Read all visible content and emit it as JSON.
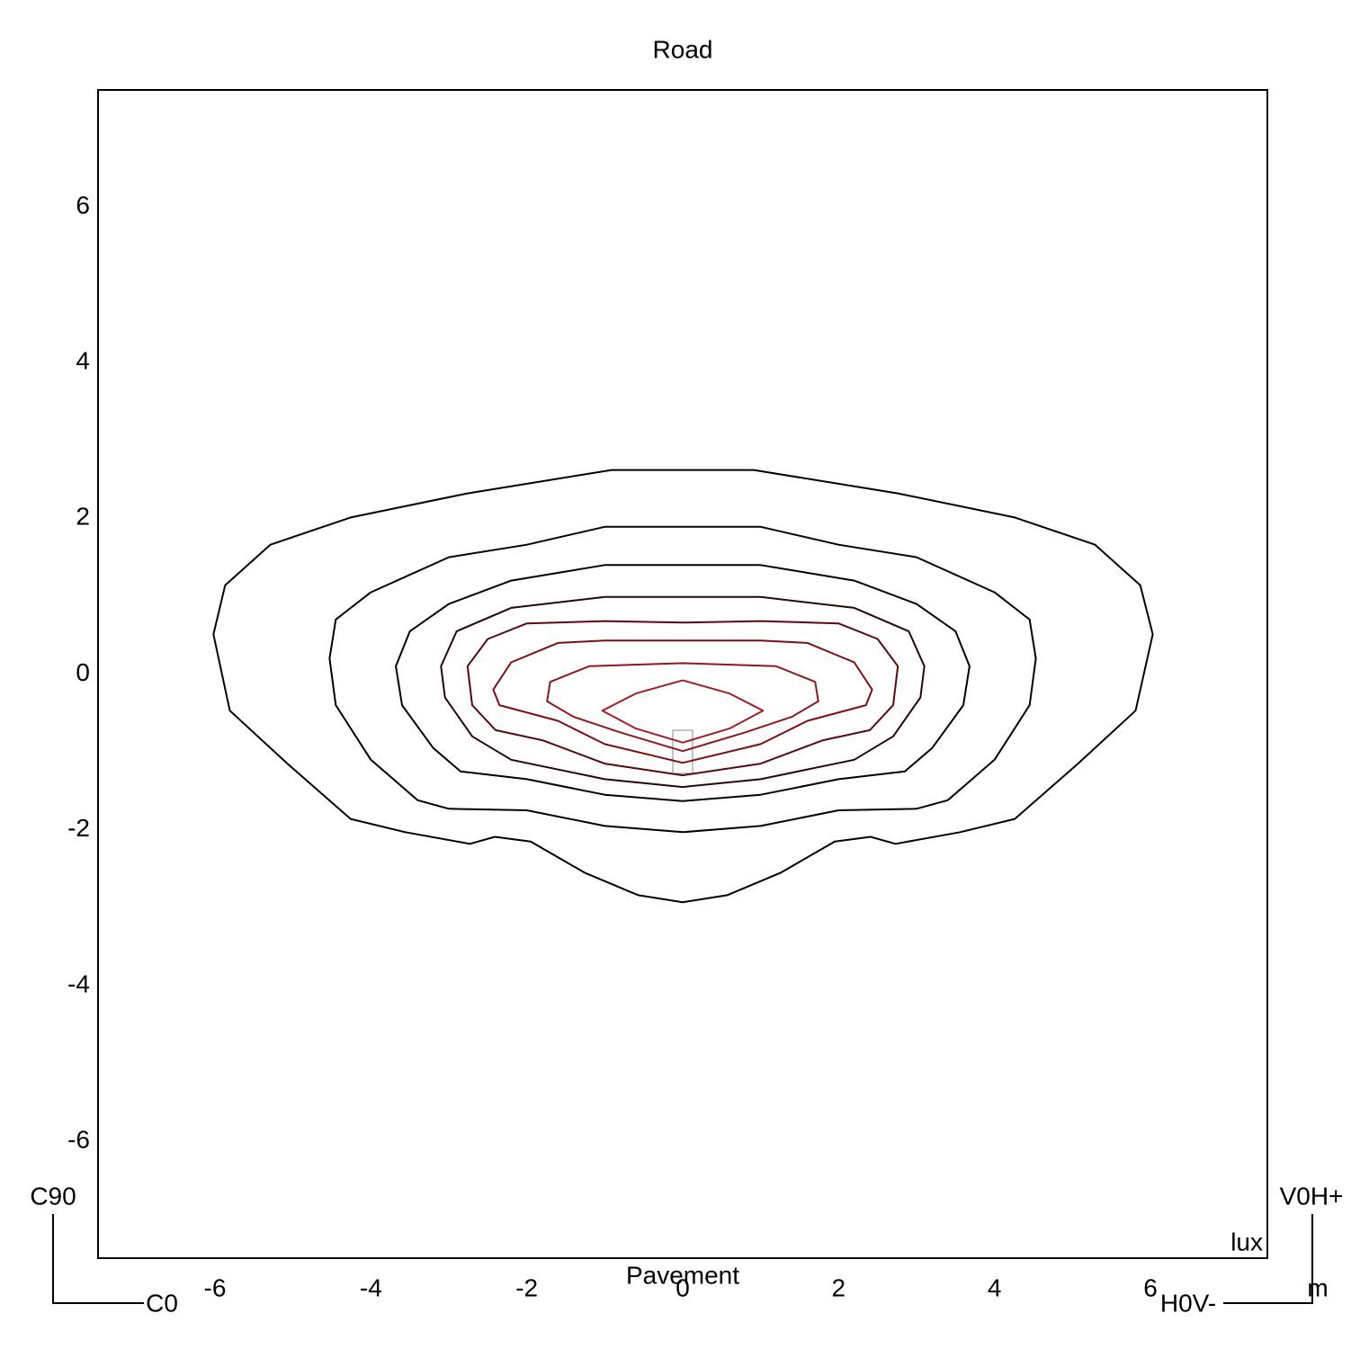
{
  "chart_data": {
    "type": "contour",
    "title": "Road",
    "xlabel": "Pavement",
    "value_unit": "lux",
    "axis_unit": "m",
    "orientation_labels": {
      "top_left": "C90",
      "bottom_left": "C0",
      "top_right": "V0H+",
      "bottom_right": "H0V-"
    },
    "xlim": [
      -7.5,
      7.5
    ],
    "ylim": [
      -7.5,
      7.5
    ],
    "xticks": [
      -6,
      -4,
      -2,
      0,
      2,
      4,
      6
    ],
    "yticks": [
      -6,
      -4,
      -2,
      0,
      2,
      4,
      6
    ],
    "grid": false,
    "series": [
      {
        "color": "#000000",
        "x": [
          0,
          -0.91,
          -2.76,
          -4.26,
          -5.29,
          -5.87,
          -6.02,
          -5.81,
          -5.06,
          -4.26,
          -3.56,
          -2.73,
          -2.41,
          -1.95,
          -1.26,
          -0.57,
          0,
          0.57,
          1.26,
          1.95,
          2.41,
          2.73,
          3.56,
          4.26,
          5.06,
          5.81,
          6.03,
          5.87,
          5.29,
          4.26,
          2.76,
          0.91,
          0
        ],
        "y": [
          2.62,
          2.62,
          2.32,
          2.01,
          1.66,
          1.14,
          0.51,
          -0.47,
          -1.16,
          -1.86,
          -2.03,
          -2.18,
          -2.09,
          -2.15,
          -2.55,
          -2.84,
          -2.93,
          -2.84,
          -2.55,
          -2.15,
          -2.09,
          -2.18,
          -2.03,
          -1.86,
          -1.16,
          -0.47,
          0.51,
          1.14,
          1.66,
          2.01,
          2.32,
          2.62,
          2.62
        ]
      },
      {
        "color": "#000000",
        "x": [
          0,
          -1.0,
          -2.0,
          -3.0,
          -4.0,
          -4.45,
          -4.53,
          -4.45,
          -4.0,
          -3.4,
          -3.0,
          -2.0,
          -1.0,
          0,
          1.0,
          2.0,
          3.0,
          3.4,
          4.0,
          4.45,
          4.53,
          4.45,
          4.0,
          3.0,
          2.0,
          1.0,
          0
        ],
        "y": [
          1.89,
          1.89,
          1.66,
          1.5,
          1.05,
          0.7,
          0.2,
          -0.4,
          -1.1,
          -1.62,
          -1.73,
          -1.75,
          -1.95,
          -2.03,
          -1.95,
          -1.75,
          -1.73,
          -1.62,
          -1.1,
          -0.4,
          0.2,
          0.7,
          1.05,
          1.5,
          1.66,
          1.89,
          1.89
        ]
      },
      {
        "color": "#000000",
        "x": [
          0,
          -1.0,
          -2.2,
          -3.0,
          -3.5,
          -3.68,
          -3.6,
          -3.2,
          -2.85,
          -2.0,
          -1.0,
          0,
          1.0,
          2.0,
          2.85,
          3.2,
          3.6,
          3.68,
          3.5,
          3.0,
          2.2,
          1.0,
          0
        ],
        "y": [
          1.4,
          1.4,
          1.2,
          0.9,
          0.55,
          0.1,
          -0.4,
          -0.95,
          -1.25,
          -1.35,
          -1.55,
          -1.63,
          -1.55,
          -1.35,
          -1.25,
          -0.95,
          -0.4,
          0.1,
          0.55,
          0.9,
          1.2,
          1.4,
          1.4
        ]
      },
      {
        "color": "#2a0505",
        "x": [
          0,
          -1.0,
          -2.2,
          -2.9,
          -3.1,
          -3.05,
          -2.7,
          -2.2,
          -1.0,
          0,
          1.0,
          2.2,
          2.7,
          3.05,
          3.1,
          2.9,
          2.2,
          1.0,
          0
        ],
        "y": [
          0.99,
          0.99,
          0.85,
          0.55,
          0.1,
          -0.3,
          -0.8,
          -1.1,
          -1.35,
          -1.45,
          -1.35,
          -1.1,
          -0.8,
          -0.3,
          0.1,
          0.55,
          0.85,
          0.99,
          0.99
        ]
      },
      {
        "color": "#5a0a0a",
        "x": [
          0,
          -1.0,
          -2.0,
          -2.5,
          -2.76,
          -2.7,
          -2.4,
          -1.8,
          -1.0,
          0,
          1.0,
          1.8,
          2.4,
          2.7,
          2.76,
          2.5,
          2.0,
          1.0,
          0
        ],
        "y": [
          0.66,
          0.68,
          0.65,
          0.45,
          0.1,
          -0.4,
          -0.72,
          -0.85,
          -1.15,
          -1.3,
          -1.15,
          -0.85,
          -0.72,
          -0.4,
          0.1,
          0.45,
          0.65,
          0.68,
          0.66
        ]
      },
      {
        "color": "#7a1010",
        "x": [
          0,
          -1.0,
          -1.6,
          -2.2,
          -2.43,
          -2.35,
          -1.6,
          -1.0,
          0,
          1.0,
          1.6,
          2.35,
          2.43,
          2.2,
          1.6,
          1.0,
          0
        ],
        "y": [
          0.43,
          0.43,
          0.4,
          0.15,
          -0.2,
          -0.4,
          -0.6,
          -0.9,
          -1.14,
          -0.9,
          -0.6,
          -0.4,
          -0.2,
          0.15,
          0.4,
          0.43,
          0.43
        ]
      },
      {
        "color": "#8b1a1a",
        "x": [
          0,
          -1.2,
          -1.7,
          -1.74,
          -1.4,
          -0.8,
          0,
          0.8,
          1.4,
          1.74,
          1.7,
          1.2,
          0
        ],
        "y": [
          0.14,
          0.1,
          -0.1,
          -0.35,
          -0.55,
          -0.75,
          -0.99,
          -0.75,
          -0.55,
          -0.35,
          -0.1,
          0.1,
          0.14
        ]
      },
      {
        "color": "#a02020",
        "x": [
          0,
          -0.6,
          -1.03,
          -0.6,
          0,
          0.6,
          1.03,
          0.6,
          0
        ],
        "y": [
          -0.08,
          -0.25,
          -0.47,
          -0.7,
          -0.88,
          -0.7,
          -0.47,
          -0.25,
          -0.08
        ]
      }
    ]
  }
}
